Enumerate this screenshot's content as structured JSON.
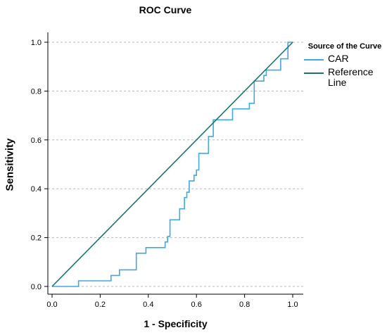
{
  "chart_data": {
    "type": "line",
    "title": "ROC Curve",
    "xlabel": "1 - Specificity",
    "ylabel": "Sensitivity",
    "xlim": [
      0,
      1
    ],
    "ylim": [
      0,
      1
    ],
    "x_ticks": [
      0.0,
      0.2,
      0.4,
      0.6,
      0.8,
      1.0
    ],
    "y_ticks": [
      0.0,
      0.2,
      0.4,
      0.6,
      0.8,
      1.0
    ],
    "x_tick_labels": [
      "0.0",
      "0.2",
      "0.4",
      "0.6",
      "0.8",
      "1.0"
    ],
    "y_tick_labels": [
      "0.0",
      "0.2",
      "0.4",
      "0.6",
      "0.8",
      "1.0"
    ],
    "grid": "horizontal dashed",
    "legend": {
      "title": "Source of the Curve",
      "position": "right"
    },
    "series": [
      {
        "name": "CAR",
        "color": "#41a8e0",
        "step": true,
        "points": [
          [
            0.0,
            0.0
          ],
          [
            0.11,
            0.0
          ],
          [
            0.11,
            0.023
          ],
          [
            0.245,
            0.023
          ],
          [
            0.245,
            0.045
          ],
          [
            0.28,
            0.045
          ],
          [
            0.28,
            0.068
          ],
          [
            0.35,
            0.068
          ],
          [
            0.35,
            0.136
          ],
          [
            0.39,
            0.136
          ],
          [
            0.39,
            0.159
          ],
          [
            0.47,
            0.159
          ],
          [
            0.47,
            0.182
          ],
          [
            0.48,
            0.182
          ],
          [
            0.48,
            0.205
          ],
          [
            0.49,
            0.205
          ],
          [
            0.49,
            0.273
          ],
          [
            0.53,
            0.273
          ],
          [
            0.53,
            0.318
          ],
          [
            0.55,
            0.318
          ],
          [
            0.55,
            0.364
          ],
          [
            0.56,
            0.364
          ],
          [
            0.56,
            0.386
          ],
          [
            0.57,
            0.386
          ],
          [
            0.57,
            0.432
          ],
          [
            0.59,
            0.432
          ],
          [
            0.59,
            0.455
          ],
          [
            0.6,
            0.455
          ],
          [
            0.6,
            0.477
          ],
          [
            0.61,
            0.477
          ],
          [
            0.61,
            0.545
          ],
          [
            0.65,
            0.545
          ],
          [
            0.65,
            0.614
          ],
          [
            0.67,
            0.614
          ],
          [
            0.67,
            0.682
          ],
          [
            0.75,
            0.682
          ],
          [
            0.75,
            0.727
          ],
          [
            0.82,
            0.727
          ],
          [
            0.82,
            0.75
          ],
          [
            0.84,
            0.75
          ],
          [
            0.84,
            0.841
          ],
          [
            0.88,
            0.841
          ],
          [
            0.88,
            0.864
          ],
          [
            0.89,
            0.864
          ],
          [
            0.89,
            0.886
          ],
          [
            0.95,
            0.886
          ],
          [
            0.95,
            0.932
          ],
          [
            0.98,
            0.932
          ],
          [
            0.98,
            1.0
          ],
          [
            1.0,
            1.0
          ]
        ]
      },
      {
        "name": "Reference Line",
        "color": "#1a7373",
        "points": [
          [
            0.0,
            0.0
          ],
          [
            1.0,
            1.0
          ]
        ]
      }
    ]
  },
  "legend_labels": {
    "car": "CAR",
    "ref_line1": "Reference",
    "ref_line2": "Line"
  }
}
